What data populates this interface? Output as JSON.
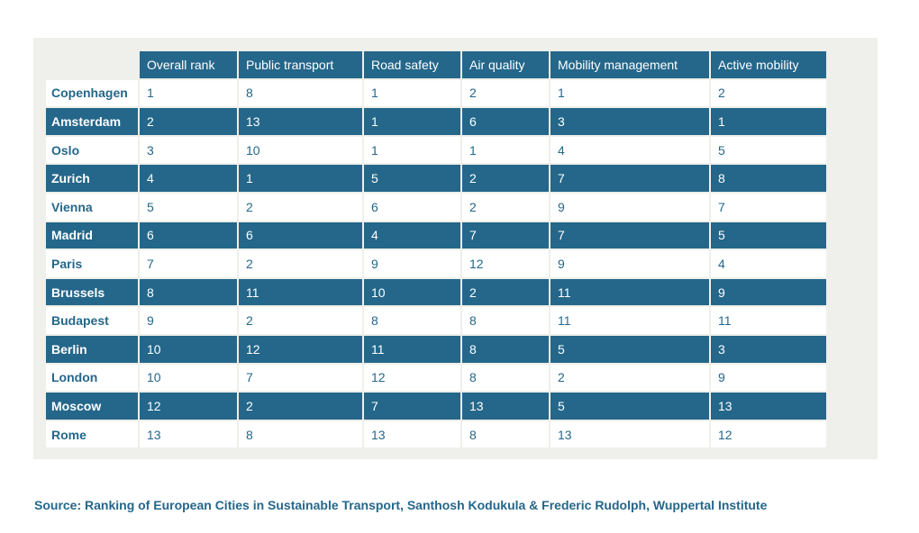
{
  "chart_data": {
    "type": "table",
    "columns": [
      "",
      "Overall rank",
      "Public transport",
      "Road safety",
      "Air quality",
      "Mobility management",
      "Active mobility"
    ],
    "rows": [
      [
        "Copenhagen",
        "1",
        "8",
        "1",
        "2",
        "1",
        "2"
      ],
      [
        "Amsterdam",
        "2",
        "13",
        "1",
        "6",
        "3",
        "1"
      ],
      [
        "Oslo",
        "3",
        "10",
        "1",
        "1",
        "4",
        "5"
      ],
      [
        "Zurich",
        "4",
        "1",
        "5",
        "2",
        "7",
        "8"
      ],
      [
        "Vienna",
        "5",
        "2",
        "6",
        "2",
        "9",
        "7"
      ],
      [
        "Madrid",
        "6",
        "6",
        "4",
        "7",
        "7",
        "5"
      ],
      [
        "Paris",
        "7",
        "2",
        "9",
        "12",
        "9",
        "4"
      ],
      [
        "Brussels",
        "8",
        "11",
        "10",
        "2",
        "11",
        "9"
      ],
      [
        "Budapest",
        "9",
        "2",
        "8",
        "8",
        "11",
        "11"
      ],
      [
        "Berlin",
        "10",
        "12",
        "11",
        "8",
        "5",
        "3"
      ],
      [
        "London",
        "10",
        "7",
        "12",
        "8",
        "2",
        "9"
      ],
      [
        "Moscow",
        "12",
        "2",
        "7",
        "13",
        "5",
        "13"
      ],
      [
        "Rome",
        "13",
        "8",
        "13",
        "8",
        "13",
        "12"
      ]
    ]
  },
  "source": "Source: Ranking of European Cities in Sustainable Transport, Santhosh Kodukula & Frederic Rudolph, Wuppertal Institute",
  "colors": {
    "header_bg": "#24678a",
    "dark_row_bg": "#24678a",
    "light_row_bg": "#ffffff",
    "panel_bg": "#efefeb",
    "text_blue": "#24678a"
  }
}
